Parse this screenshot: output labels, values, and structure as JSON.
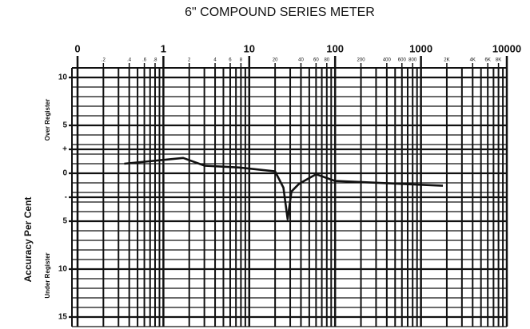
{
  "chart_data": {
    "type": "line",
    "title": "6\" COMPOUND SERIES METER",
    "ylabel": "Accuracy Per Cent",
    "annotations": [
      "Over Register",
      "Under Register"
    ],
    "x_scale": "log",
    "xlim": [
      0.1,
      10000
    ],
    "xticks": [
      {
        "value": 0.1,
        "label": "0"
      },
      1,
      10,
      100,
      1000,
      10000
    ],
    "xminor_labels": [
      {
        "value": 0.2,
        "label": ".2"
      },
      {
        "value": 0.4,
        "label": ".4"
      },
      {
        "value": 0.6,
        "label": ".6"
      },
      {
        "value": 0.8,
        "label": ".8"
      },
      2,
      4,
      6,
      8,
      20,
      40,
      60,
      80,
      200,
      400,
      600,
      800,
      {
        "value": 2000,
        "label": "2K"
      },
      {
        "value": 4000,
        "label": "4K"
      },
      {
        "value": 6000,
        "label": "6K"
      },
      {
        "value": 8000,
        "label": "8K"
      }
    ],
    "ylim": [
      -16,
      11
    ],
    "yticks": [
      10,
      5,
      {
        "value": 2.5,
        "label": "+"
      },
      0,
      {
        "value": -2.5,
        "label": "-"
      },
      {
        "value": -5,
        "label": "5"
      },
      {
        "value": -10,
        "label": "10"
      },
      {
        "value": -15,
        "label": "15"
      }
    ],
    "grid": true,
    "series": [
      {
        "name": null,
        "color": "#111111",
        "x": [
          0.35,
          1.7,
          3,
          7.7,
          20,
          25,
          28,
          31,
          38,
          60,
          100,
          1800
        ],
        "values": [
          1.0,
          1.6,
          0.8,
          0.6,
          0.2,
          -1.5,
          -4.8,
          -1.9,
          -1.1,
          -0.1,
          -0.8,
          -1.3
        ]
      }
    ]
  }
}
